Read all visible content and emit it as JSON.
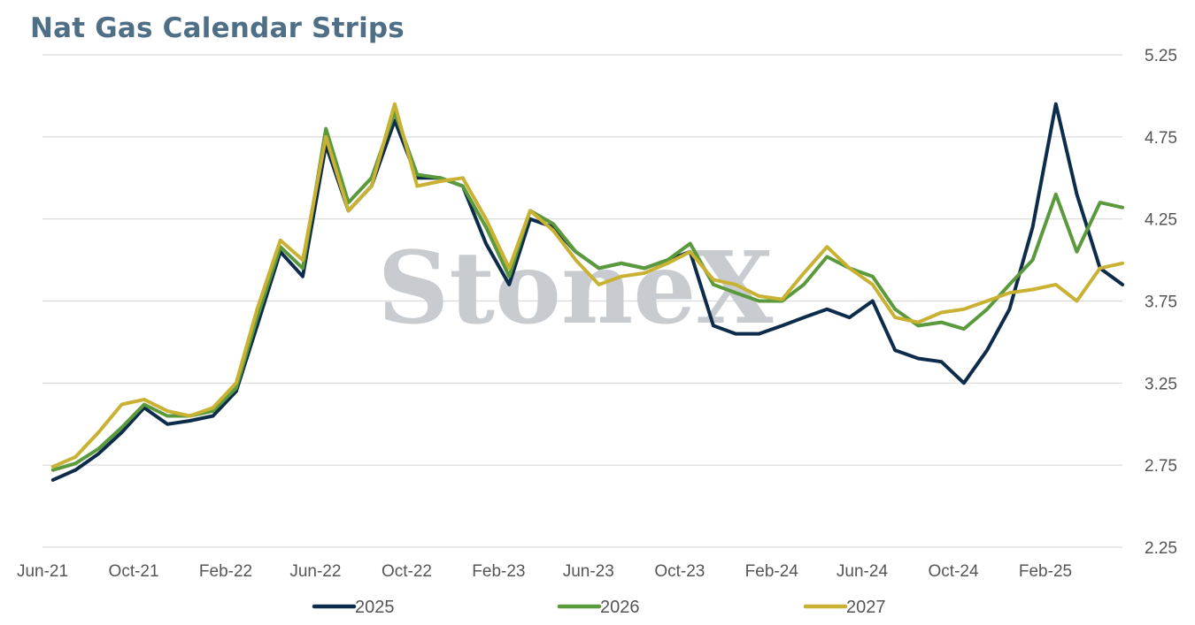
{
  "title": "Nat Gas Calendar Strips",
  "watermark": "StoneX",
  "colors": {
    "title": "#4f6f86",
    "grid": "#d9d9d9",
    "axis_text": "#555555",
    "watermark": "#c8ccd1"
  },
  "chart_data": {
    "type": "line",
    "title": "Nat Gas Calendar Strips",
    "xlabel": "",
    "ylabel": "",
    "x_tick_labels": [
      "Jun-21",
      "Oct-21",
      "Feb-22",
      "Jun-22",
      "Oct-22",
      "Feb-23",
      "Jun-23",
      "Oct-23",
      "Feb-24",
      "Jun-24",
      "Oct-24",
      "Feb-25"
    ],
    "y_tick_labels": [
      "5.25",
      "4.75",
      "4.25",
      "3.75",
      "3.25",
      "2.75",
      "2.25"
    ],
    "ylim": [
      2.25,
      5.25
    ],
    "xlim": [
      "2021-06-01",
      "2025-05-15"
    ],
    "y_axis_side": "right",
    "grid": "horizontal",
    "legend_position": "bottom",
    "x": [
      "2021-06",
      "2021-07",
      "2021-08",
      "2021-09",
      "2021-10",
      "2021-11",
      "2021-12",
      "2022-01",
      "2022-02",
      "2022-03",
      "2022-04",
      "2022-05",
      "2022-06",
      "2022-07",
      "2022-08",
      "2022-09",
      "2022-10",
      "2022-11",
      "2022-12",
      "2023-01",
      "2023-02",
      "2023-03",
      "2023-04",
      "2023-05",
      "2023-06",
      "2023-07",
      "2023-08",
      "2023-09",
      "2023-10",
      "2023-11",
      "2023-12",
      "2024-01",
      "2024-02",
      "2024-03",
      "2024-04",
      "2024-05",
      "2024-06",
      "2024-07",
      "2024-08",
      "2024-09",
      "2024-10",
      "2024-11",
      "2024-12",
      "2025-01",
      "2025-02",
      "2025-03",
      "2025-04",
      "2025-05"
    ],
    "series": [
      {
        "name": "2025",
        "color": "#0d2b4a",
        "values": [
          2.66,
          2.72,
          2.82,
          2.95,
          3.1,
          3.0,
          3.02,
          3.05,
          3.2,
          3.6,
          4.05,
          3.9,
          4.7,
          4.3,
          4.45,
          4.85,
          4.5,
          4.5,
          4.45,
          4.1,
          3.85,
          4.25,
          4.2,
          4.05,
          3.95,
          3.98,
          3.95,
          4.0,
          4.05,
          3.6,
          3.55,
          3.55,
          3.6,
          3.65,
          3.7,
          3.65,
          3.75,
          3.45,
          3.4,
          3.38,
          3.25,
          3.45,
          3.7,
          4.2,
          4.95,
          4.4,
          3.95,
          3.85
        ]
      },
      {
        "name": "2026",
        "color": "#5a9a3c",
        "values": [
          2.72,
          2.76,
          2.85,
          2.98,
          3.12,
          3.05,
          3.05,
          3.08,
          3.22,
          3.65,
          4.08,
          3.95,
          4.8,
          4.35,
          4.5,
          4.9,
          4.52,
          4.5,
          4.45,
          4.2,
          3.9,
          4.3,
          4.22,
          4.05,
          3.95,
          3.98,
          3.95,
          4.0,
          4.1,
          3.85,
          3.8,
          3.75,
          3.75,
          3.85,
          4.02,
          3.95,
          3.9,
          3.7,
          3.6,
          3.62,
          3.58,
          3.7,
          3.85,
          4.0,
          4.4,
          4.05,
          4.35,
          4.32
        ]
      },
      {
        "name": "2027",
        "color": "#c9b233",
        "values": [
          2.74,
          2.8,
          2.95,
          3.12,
          3.15,
          3.08,
          3.05,
          3.1,
          3.25,
          3.7,
          4.12,
          4.0,
          4.75,
          4.3,
          4.45,
          4.95,
          4.45,
          4.48,
          4.5,
          4.25,
          3.95,
          4.3,
          4.18,
          4.0,
          3.85,
          3.9,
          3.92,
          3.98,
          4.05,
          3.88,
          3.85,
          3.78,
          3.76,
          3.92,
          4.08,
          3.95,
          3.85,
          3.65,
          3.62,
          3.68,
          3.7,
          3.75,
          3.8,
          3.82,
          3.85,
          3.75,
          3.95,
          3.98
        ]
      }
    ]
  }
}
